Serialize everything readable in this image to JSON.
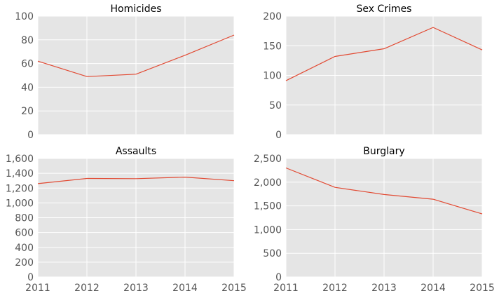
{
  "chart_data": [
    {
      "type": "line",
      "title": "Homicides",
      "x": [
        2011,
        2012,
        2013,
        2014,
        2015
      ],
      "series": [
        {
          "values": [
            62,
            49,
            51,
            67,
            84
          ]
        }
      ],
      "ylim": [
        0,
        100
      ],
      "yticks": [
        0,
        20,
        40,
        60,
        80,
        100
      ],
      "ytick_labels": [
        "0",
        "20",
        "40",
        "60",
        "80",
        "100"
      ],
      "xticks": [
        2011,
        2012,
        2013,
        2014,
        2015
      ],
      "xtick_labels": [],
      "grid": true
    },
    {
      "type": "line",
      "title": "Sex Crimes",
      "x": [
        2011,
        2012,
        2013,
        2014,
        2015
      ],
      "series": [
        {
          "values": [
            91,
            132,
            145,
            181,
            143
          ]
        }
      ],
      "ylim": [
        0,
        200
      ],
      "yticks": [
        0,
        50,
        100,
        150,
        200
      ],
      "ytick_labels": [
        "0",
        "50",
        "100",
        "150",
        "200"
      ],
      "xticks": [
        2011,
        2012,
        2013,
        2014,
        2015
      ],
      "xtick_labels": [],
      "grid": true
    },
    {
      "type": "line",
      "title": "Assaults",
      "x": [
        2011,
        2012,
        2013,
        2014,
        2015
      ],
      "series": [
        {
          "values": [
            1260,
            1330,
            1327,
            1348,
            1300
          ]
        }
      ],
      "ylim": [
        0,
        1600
      ],
      "yticks": [
        0,
        200,
        400,
        600,
        800,
        1000,
        1200,
        1400,
        1600
      ],
      "ytick_labels": [
        "0",
        "200",
        "400",
        "600",
        "800",
        "1,000",
        "1,200",
        "1,400",
        "1,600"
      ],
      "xticks": [
        2011,
        2012,
        2013,
        2014,
        2015
      ],
      "xtick_labels": [
        "2011",
        "2012",
        "2013",
        "2014",
        "2015"
      ],
      "grid": true
    },
    {
      "type": "line",
      "title": "Burglary",
      "x": [
        2011,
        2012,
        2013,
        2014,
        2015
      ],
      "series": [
        {
          "values": [
            2300,
            1890,
            1740,
            1640,
            1330
          ]
        }
      ],
      "ylim": [
        0,
        2500
      ],
      "yticks": [
        0,
        500,
        1000,
        1500,
        2000,
        2500
      ],
      "ytick_labels": [
        "0",
        "500",
        "1,000",
        "1,500",
        "2,000",
        "2,500"
      ],
      "xticks": [
        2011,
        2012,
        2013,
        2014,
        2015
      ],
      "xtick_labels": [
        "2011",
        "2012",
        "2013",
        "2014",
        "2015"
      ],
      "grid": true
    }
  ],
  "colors": {
    "line": "#e24a33",
    "panel": "#e5e5e5",
    "grid": "#ffffff"
  }
}
